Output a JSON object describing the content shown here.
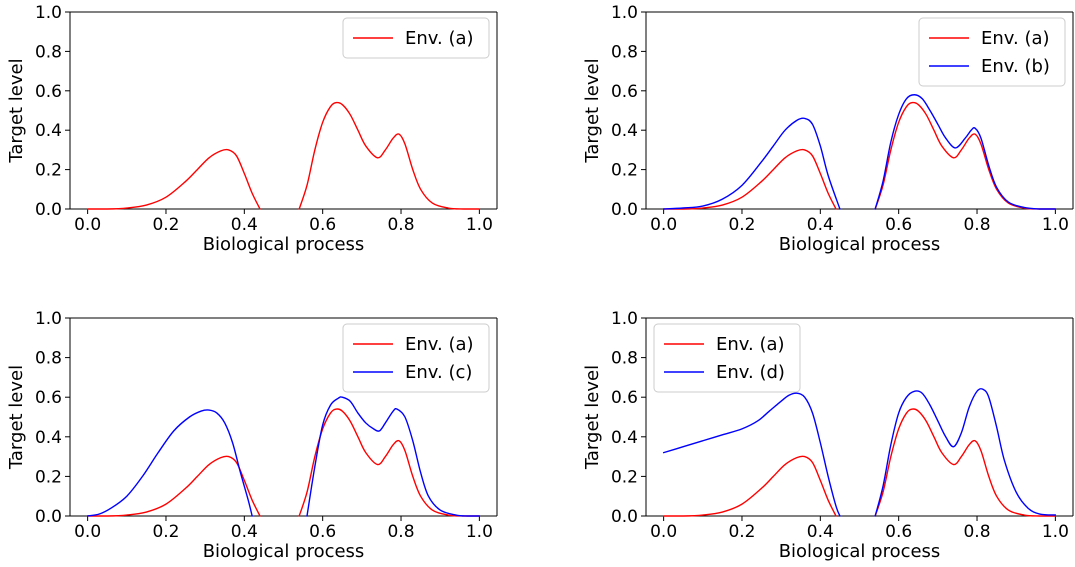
{
  "chart_data": [
    {
      "type": "line",
      "xlabel": "Biological process",
      "ylabel": "Target level",
      "xlim": [
        0.0,
        1.0
      ],
      "ylim": [
        0.0,
        1.0
      ],
      "xticks": [
        "0.0",
        "0.2",
        "0.4",
        "0.6",
        "0.8",
        "1.0"
      ],
      "yticks": [
        "0.0",
        "0.2",
        "0.4",
        "0.6",
        "0.8",
        "1.0"
      ],
      "legend_position": "top-right",
      "series": [
        {
          "name": "Env. (a)",
          "color": "#ff0000",
          "segments": [
            {
              "x": [
                0.0,
                0.05,
                0.1,
                0.15,
                0.2,
                0.25,
                0.28,
                0.31,
                0.34,
                0.36,
                0.38,
                0.4,
                0.42,
                0.44
              ],
              "y": [
                0.0,
                0.0,
                0.005,
                0.02,
                0.06,
                0.14,
                0.2,
                0.26,
                0.295,
                0.3,
                0.27,
                0.18,
                0.08,
                0.0
              ]
            },
            {
              "x": [
                0.54,
                0.56,
                0.58,
                0.6,
                0.62,
                0.635,
                0.65,
                0.67,
                0.69,
                0.71,
                0.74,
                0.76,
                0.78,
                0.795,
                0.81,
                0.83,
                0.85,
                0.88,
                0.92,
                0.96,
                1.0
              ],
              "y": [
                0.0,
                0.12,
                0.3,
                0.44,
                0.52,
                0.54,
                0.53,
                0.48,
                0.4,
                0.32,
                0.26,
                0.3,
                0.36,
                0.38,
                0.33,
                0.2,
                0.1,
                0.03,
                0.005,
                0.0,
                0.0
              ]
            }
          ]
        }
      ]
    },
    {
      "type": "line",
      "xlabel": "Biological process",
      "ylabel": "Target level",
      "xlim": [
        0.0,
        1.0
      ],
      "ylim": [
        0.0,
        1.0
      ],
      "xticks": [
        "0.0",
        "0.2",
        "0.4",
        "0.6",
        "0.8",
        "1.0"
      ],
      "yticks": [
        "0.0",
        "0.2",
        "0.4",
        "0.6",
        "0.8",
        "1.0"
      ],
      "legend_position": "top-right",
      "series": [
        {
          "name": "Env. (a)",
          "color": "#ff0000",
          "segments": [
            {
              "x": [
                0.0,
                0.05,
                0.1,
                0.15,
                0.2,
                0.25,
                0.28,
                0.31,
                0.34,
                0.36,
                0.38,
                0.4,
                0.42,
                0.44
              ],
              "y": [
                0.0,
                0.0,
                0.005,
                0.02,
                0.06,
                0.14,
                0.2,
                0.26,
                0.295,
                0.3,
                0.27,
                0.18,
                0.08,
                0.0
              ]
            },
            {
              "x": [
                0.54,
                0.56,
                0.58,
                0.6,
                0.62,
                0.635,
                0.65,
                0.67,
                0.69,
                0.71,
                0.74,
                0.76,
                0.78,
                0.795,
                0.81,
                0.83,
                0.85,
                0.88,
                0.92,
                0.96,
                1.0
              ],
              "y": [
                0.0,
                0.12,
                0.3,
                0.44,
                0.52,
                0.54,
                0.53,
                0.48,
                0.4,
                0.32,
                0.26,
                0.3,
                0.36,
                0.38,
                0.33,
                0.2,
                0.1,
                0.03,
                0.005,
                0.0,
                0.0
              ]
            }
          ]
        },
        {
          "name": "Env. (b)",
          "color": "#0000ff",
          "segments": [
            {
              "x": [
                0.0,
                0.05,
                0.1,
                0.15,
                0.2,
                0.25,
                0.28,
                0.31,
                0.34,
                0.36,
                0.38,
                0.4,
                0.42,
                0.45
              ],
              "y": [
                0.0,
                0.005,
                0.015,
                0.05,
                0.12,
                0.24,
                0.32,
                0.4,
                0.45,
                0.46,
                0.43,
                0.32,
                0.17,
                0.0
              ]
            },
            {
              "x": [
                0.54,
                0.56,
                0.58,
                0.6,
                0.62,
                0.64,
                0.66,
                0.68,
                0.7,
                0.72,
                0.745,
                0.77,
                0.785,
                0.795,
                0.81,
                0.83,
                0.85,
                0.88,
                0.92,
                0.96,
                1.0
              ],
              "y": [
                0.0,
                0.14,
                0.34,
                0.48,
                0.56,
                0.58,
                0.56,
                0.5,
                0.43,
                0.36,
                0.31,
                0.36,
                0.4,
                0.41,
                0.36,
                0.22,
                0.11,
                0.035,
                0.008,
                0.0,
                0.0
              ]
            }
          ]
        }
      ]
    },
    {
      "type": "line",
      "xlabel": "Biological process",
      "ylabel": "Target level",
      "xlim": [
        0.0,
        1.0
      ],
      "ylim": [
        0.0,
        1.0
      ],
      "xticks": [
        "0.0",
        "0.2",
        "0.4",
        "0.6",
        "0.8",
        "1.0"
      ],
      "yticks": [
        "0.0",
        "0.2",
        "0.4",
        "0.6",
        "0.8",
        "1.0"
      ],
      "legend_position": "top-right",
      "series": [
        {
          "name": "Env. (a)",
          "color": "#ff0000",
          "segments": [
            {
              "x": [
                0.0,
                0.05,
                0.1,
                0.15,
                0.2,
                0.25,
                0.28,
                0.31,
                0.34,
                0.36,
                0.38,
                0.4,
                0.42,
                0.44
              ],
              "y": [
                0.0,
                0.0,
                0.005,
                0.02,
                0.06,
                0.14,
                0.2,
                0.26,
                0.295,
                0.3,
                0.27,
                0.18,
                0.08,
                0.0
              ]
            },
            {
              "x": [
                0.54,
                0.56,
                0.58,
                0.6,
                0.62,
                0.635,
                0.65,
                0.67,
                0.69,
                0.71,
                0.74,
                0.76,
                0.78,
                0.795,
                0.81,
                0.83,
                0.85,
                0.88,
                0.92,
                0.96,
                1.0
              ],
              "y": [
                0.0,
                0.12,
                0.3,
                0.44,
                0.52,
                0.54,
                0.53,
                0.48,
                0.4,
                0.32,
                0.26,
                0.3,
                0.36,
                0.38,
                0.33,
                0.2,
                0.1,
                0.03,
                0.005,
                0.0,
                0.0
              ]
            }
          ]
        },
        {
          "name": "Env. (c)",
          "color": "#0000ff",
          "segments": [
            {
              "x": [
                0.0,
                0.03,
                0.06,
                0.1,
                0.14,
                0.18,
                0.22,
                0.26,
                0.29,
                0.31,
                0.33,
                0.35,
                0.37,
                0.39,
                0.41,
                0.42
              ],
              "y": [
                0.0,
                0.01,
                0.04,
                0.1,
                0.2,
                0.32,
                0.43,
                0.5,
                0.53,
                0.535,
                0.52,
                0.47,
                0.37,
                0.22,
                0.08,
                0.0
              ]
            },
            {
              "x": [
                0.56,
                0.58,
                0.6,
                0.62,
                0.64,
                0.65,
                0.67,
                0.69,
                0.71,
                0.73,
                0.745,
                0.76,
                0.78,
                0.79,
                0.81,
                0.83,
                0.85,
                0.87,
                0.9,
                0.94,
                0.97,
                1.0
              ],
              "y": [
                0.0,
                0.25,
                0.46,
                0.56,
                0.595,
                0.6,
                0.58,
                0.52,
                0.47,
                0.44,
                0.43,
                0.47,
                0.53,
                0.54,
                0.5,
                0.38,
                0.22,
                0.1,
                0.03,
                0.005,
                0.0,
                0.0
              ]
            }
          ]
        }
      ]
    },
    {
      "type": "line",
      "xlabel": "Biological process",
      "ylabel": "Target level",
      "xlim": [
        0.0,
        1.0
      ],
      "ylim": [
        0.0,
        1.0
      ],
      "xticks": [
        "0.0",
        "0.2",
        "0.4",
        "0.6",
        "0.8",
        "1.0"
      ],
      "yticks": [
        "0.0",
        "0.2",
        "0.4",
        "0.6",
        "0.8",
        "1.0"
      ],
      "legend_position": "top-left",
      "series": [
        {
          "name": "Env. (a)",
          "color": "#ff0000",
          "segments": [
            {
              "x": [
                0.0,
                0.05,
                0.1,
                0.15,
                0.2,
                0.25,
                0.28,
                0.31,
                0.34,
                0.36,
                0.38,
                0.4,
                0.42,
                0.44
              ],
              "y": [
                0.0,
                0.0,
                0.005,
                0.02,
                0.06,
                0.14,
                0.2,
                0.26,
                0.295,
                0.3,
                0.27,
                0.18,
                0.08,
                0.0
              ]
            },
            {
              "x": [
                0.54,
                0.56,
                0.58,
                0.6,
                0.62,
                0.635,
                0.65,
                0.67,
                0.69,
                0.71,
                0.74,
                0.76,
                0.78,
                0.795,
                0.81,
                0.83,
                0.85,
                0.88,
                0.92,
                0.96,
                1.0
              ],
              "y": [
                0.0,
                0.12,
                0.3,
                0.44,
                0.52,
                0.54,
                0.53,
                0.48,
                0.4,
                0.32,
                0.26,
                0.3,
                0.36,
                0.38,
                0.33,
                0.2,
                0.1,
                0.03,
                0.005,
                0.0,
                0.0
              ]
            }
          ]
        },
        {
          "name": "Env. (d)",
          "color": "#0000ff",
          "segments": [
            {
              "x": [
                0.0,
                0.05,
                0.1,
                0.15,
                0.2,
                0.24,
                0.27,
                0.3,
                0.32,
                0.34,
                0.36,
                0.38,
                0.4,
                0.42,
                0.44,
                0.45
              ],
              "y": [
                0.32,
                0.35,
                0.38,
                0.41,
                0.44,
                0.48,
                0.53,
                0.58,
                0.61,
                0.62,
                0.6,
                0.52,
                0.37,
                0.2,
                0.05,
                0.0
              ]
            },
            {
              "x": [
                0.54,
                0.56,
                0.58,
                0.6,
                0.62,
                0.64,
                0.66,
                0.68,
                0.7,
                0.72,
                0.74,
                0.76,
                0.78,
                0.8,
                0.815,
                0.83,
                0.85,
                0.87,
                0.9,
                0.93,
                0.96,
                1.0
              ],
              "y": [
                0.0,
                0.15,
                0.36,
                0.52,
                0.6,
                0.63,
                0.62,
                0.56,
                0.48,
                0.4,
                0.35,
                0.42,
                0.55,
                0.63,
                0.64,
                0.6,
                0.45,
                0.28,
                0.12,
                0.04,
                0.01,
                0.005
              ]
            }
          ]
        }
      ]
    }
  ]
}
